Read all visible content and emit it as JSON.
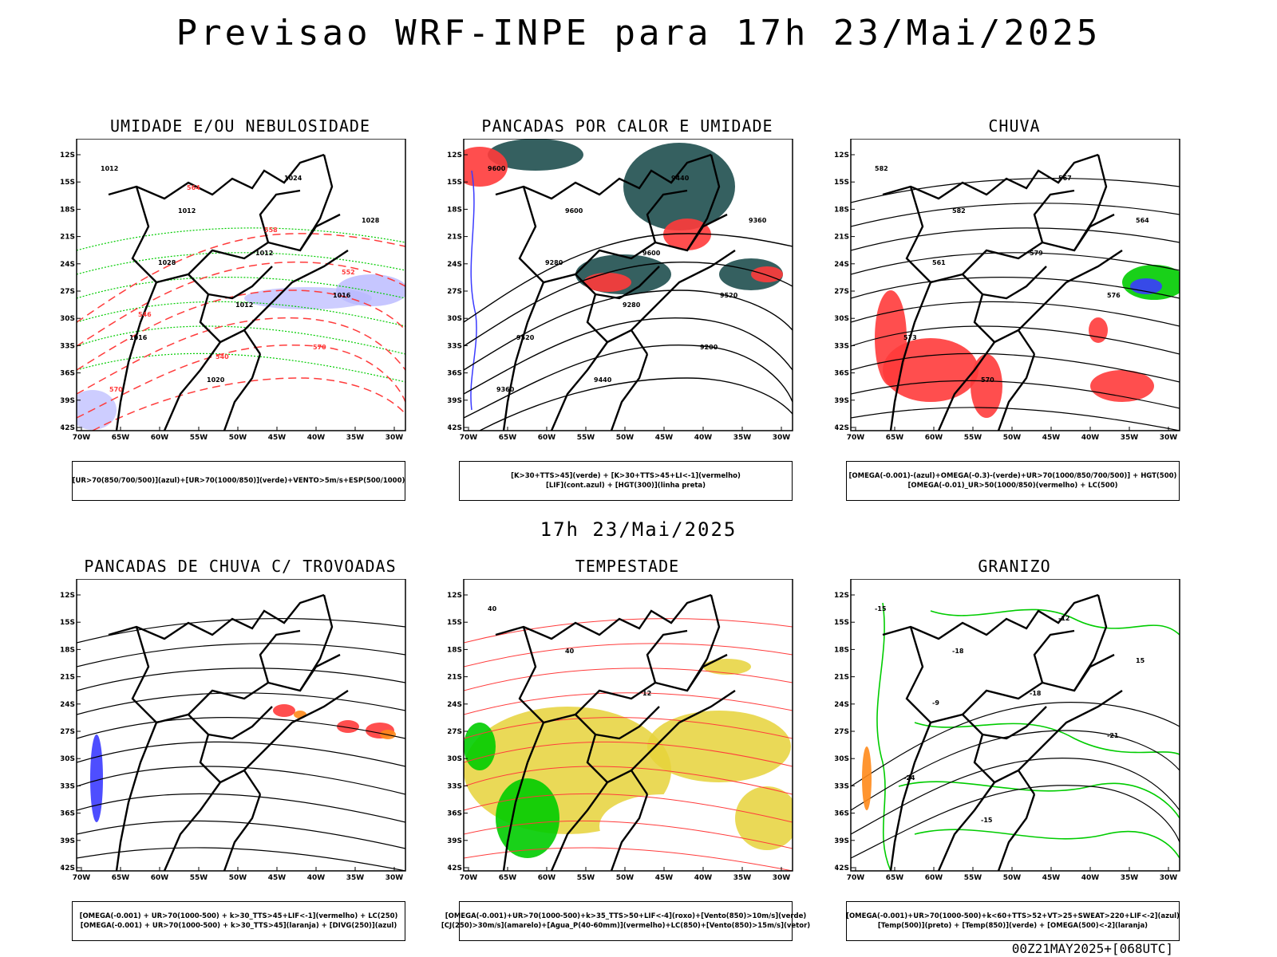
{
  "header": {
    "title": "Previsao WRF-INPE  para 17h 23/Mai/2025"
  },
  "mid_title": "17h 23/Mai/2025",
  "footer": "00Z21MAY2025+[068UTC]",
  "axes": {
    "lat_labels": [
      "12S",
      "15S",
      "18S",
      "21S",
      "24S",
      "27S",
      "30S",
      "33S",
      "36S",
      "39S",
      "42S"
    ],
    "lon_labels": [
      "70W",
      "65W",
      "60W",
      "55W",
      "50W",
      "45W",
      "40W",
      "35W",
      "30W"
    ]
  },
  "panels": [
    {
      "title": "UMIDADE E/OU NEBULOSIDADE",
      "legend": [
        "[UR>70(850/700/500)](azul)+[UR>70(1000/850)](verde)+VENTO>5m/s+ESP(500/1000)"
      ],
      "labels": [
        "1012",
        "1012",
        "1012",
        "1016",
        "1016",
        "1020",
        "1024",
        "1028",
        "1028",
        "1012",
        "570",
        "570",
        "564",
        "558",
        "552",
        "546",
        "540"
      ]
    },
    {
      "title": "PANCADAS POR CALOR E UMIDADE",
      "legend": [
        "[K>30+TTS>45](verde) + [K>30+TTS>45+LI<-1](vermelho)",
        "[LIF](cont.azul) + [HGT(300)](linha preta)"
      ],
      "labels": [
        "9600",
        "9600",
        "9600",
        "9520",
        "9520",
        "9440",
        "9440",
        "9360",
        "9280",
        "9280",
        "9200",
        "9360"
      ]
    },
    {
      "title": "CHUVA",
      "legend": [
        "[OMEGA(-0.001)-(azul)+OMEGA(-0.3)-(verde)+UR>70(1000/850/700/500)] + HGT(500)",
        "[OMEGA(-0.01)_UR>50(1000/850)(vermelho) + LC(500)"
      ],
      "labels": [
        "582",
        "582",
        "579",
        "576",
        "573",
        "570",
        "567",
        "564",
        "561"
      ]
    },
    {
      "title": "PANCADAS DE CHUVA C/ TROVOADAS",
      "legend": [
        "[OMEGA(-0.001) + UR>70(1000-500) + k>30_TTS>45+LIF<-1](vermelho) + LC(250)",
        "[OMEGA(-0.001) + UR>70(1000-500) + k>30_TTS>45](laranja) + [DIVG(250)](azul)"
      ],
      "labels": []
    },
    {
      "title": "TEMPESTADE",
      "legend": [
        "[OMEGA(-0.001)+UR>70(1000-500)+k>35_TTS>50+LIF<-4](roxo)+[Vento(850)>10m/s](verde)",
        "[CJ(250)>30m/s](amarelo)+[Agua_P(40-60mm)](vermelho)+LC(850)+[Vento(850)>15m/s](vetor)"
      ],
      "labels": [
        "40",
        "40",
        "12"
      ]
    },
    {
      "title": "GRANIZO",
      "legend": [
        "[OMEGA(-0.001)+UR>70(1000-500)+k<60+TTS>52+VT>25+SWEAT>220+LIF<-2](azul)",
        "[Temp(500)](preto) + [Temp(850)](verde) + [OMEGA(500)<-2](laranja)"
      ],
      "labels": [
        "-15",
        "-18",
        "-18",
        "-21",
        "-24",
        "-15",
        "-12",
        "15",
        "-9"
      ]
    }
  ],
  "colors": {
    "ink": "#000000",
    "red": "#ff3b3b",
    "green": "#00cc00",
    "blue": "#3b3bff",
    "lightblue": "#b8b8ff",
    "darkteal": "#1f4f4f",
    "yellow": "#e6d23a",
    "orange": "#ff8a1a"
  }
}
